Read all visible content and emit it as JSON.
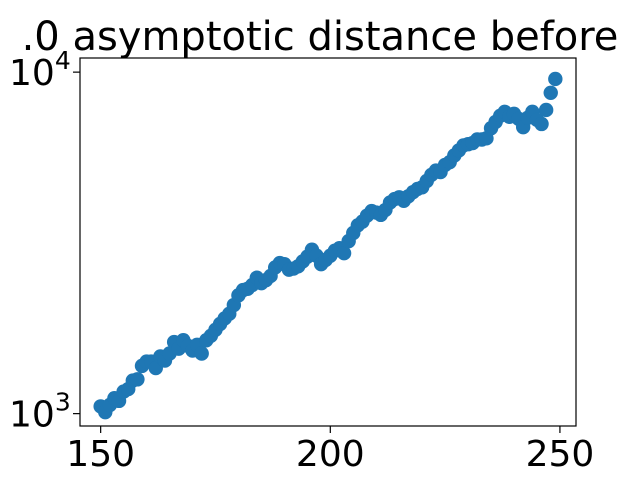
{
  "chart_data": {
    "type": "scatter",
    "title": ".0 asymptotic distance before",
    "xlabel": "",
    "ylabel": "",
    "x_scale": "linear",
    "y_scale": "log",
    "xlim": [
      145.5,
      253.5
    ],
    "ylim": [
      920,
      11000
    ],
    "x_ticks": [
      150,
      200,
      250
    ],
    "x_tick_labels": [
      "150",
      "200",
      "250"
    ],
    "y_ticks": [
      1000,
      10000
    ],
    "y_tick_labels": [
      {
        "base": "10",
        "exp": "3"
      },
      {
        "base": "10",
        "exp": "4"
      }
    ],
    "grid": false,
    "legend": "none",
    "marker_color": "#1f77b4",
    "series": [
      {
        "x": [
          150,
          151,
          152,
          153,
          154,
          155,
          156,
          157,
          158,
          159,
          160,
          161,
          162,
          163,
          164,
          165,
          166,
          167,
          168,
          169,
          170,
          171,
          172,
          173,
          174,
          175,
          176,
          177,
          178,
          179,
          180,
          181,
          182,
          183,
          184,
          185,
          186,
          187,
          188,
          189,
          190,
          191,
          192,
          193,
          194,
          195,
          196,
          197,
          198,
          199,
          200,
          201,
          202,
          203,
          204,
          205,
          206,
          207,
          208,
          209,
          210,
          211,
          212,
          213,
          214,
          215,
          216,
          217,
          218,
          219,
          220,
          221,
          222,
          223,
          224,
          225,
          226,
          227,
          228,
          229,
          230,
          231,
          232,
          233,
          234,
          235,
          236,
          237,
          238,
          239,
          240,
          241,
          242,
          243,
          244,
          245,
          246,
          247,
          248,
          249
        ],
        "y": [
          1050,
          1010,
          1060,
          1110,
          1090,
          1160,
          1180,
          1250,
          1260,
          1380,
          1420,
          1420,
          1360,
          1470,
          1430,
          1500,
          1620,
          1550,
          1640,
          1580,
          1530,
          1590,
          1500,
          1640,
          1690,
          1760,
          1830,
          1900,
          1960,
          2080,
          2220,
          2300,
          2320,
          2380,
          2500,
          2410,
          2460,
          2530,
          2680,
          2760,
          2740,
          2640,
          2660,
          2700,
          2790,
          2880,
          3020,
          2900,
          2740,
          2820,
          2900,
          3000,
          3050,
          2950,
          3200,
          3380,
          3560,
          3650,
          3800,
          3920,
          3880,
          3820,
          3950,
          4150,
          4250,
          4300,
          4200,
          4330,
          4450,
          4550,
          4600,
          4800,
          5000,
          5150,
          5100,
          5350,
          5450,
          5700,
          5900,
          6100,
          6150,
          6200,
          6350,
          6350,
          6400,
          6850,
          7150,
          7450,
          7650,
          7400,
          7550,
          7300,
          6900,
          7350,
          7650,
          7250,
          7050,
          7750,
          8700,
          9550
        ]
      }
    ]
  }
}
